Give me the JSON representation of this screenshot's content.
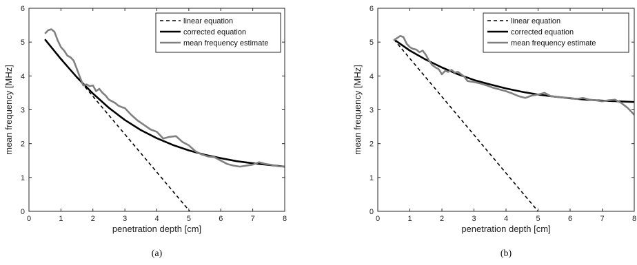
{
  "chart_data": [
    {
      "type": "line",
      "caption": "(a)",
      "xlabel": "penetration depth [cm]",
      "ylabel": "mean frequency [MHz]",
      "xlim": [
        0,
        8
      ],
      "ylim": [
        0,
        6
      ],
      "xticks": [
        0,
        1,
        2,
        3,
        4,
        5,
        6,
        7,
        8
      ],
      "yticks": [
        0,
        1,
        2,
        3,
        4,
        5,
        6
      ],
      "grid": false,
      "legend_position": "top-right",
      "series": [
        {
          "name": "linear equation",
          "style": "dashed",
          "color": "#000000",
          "x": [
            0.5,
            5.03
          ],
          "y": [
            5.08,
            0.0
          ]
        },
        {
          "name": "corrected equation",
          "style": "solid",
          "color": "#000000",
          "x": [
            0.5,
            1.0,
            1.5,
            2.0,
            2.5,
            3.0,
            3.5,
            4.0,
            4.5,
            5.0,
            5.5,
            6.0,
            6.5,
            7.0,
            7.5,
            8.0
          ],
          "y": [
            5.08,
            4.5,
            3.96,
            3.48,
            3.06,
            2.7,
            2.4,
            2.16,
            1.96,
            1.8,
            1.67,
            1.57,
            1.48,
            1.42,
            1.37,
            1.32
          ]
        },
        {
          "name": "mean frequency estimate",
          "style": "solid",
          "color": "#808080",
          "x": [
            0.5,
            0.6,
            0.7,
            0.8,
            0.9,
            1.0,
            1.1,
            1.2,
            1.3,
            1.4,
            1.5,
            1.6,
            1.7,
            1.8,
            1.9,
            2.0,
            2.1,
            2.2,
            2.3,
            2.4,
            2.5,
            2.6,
            2.7,
            2.8,
            2.9,
            3.0,
            3.2,
            3.4,
            3.6,
            3.8,
            4.0,
            4.2,
            4.4,
            4.6,
            4.8,
            5.0,
            5.2,
            5.4,
            5.6,
            5.8,
            6.0,
            6.2,
            6.4,
            6.6,
            6.8,
            7.0,
            7.2,
            7.4,
            7.6,
            7.8,
            8.0
          ],
          "y": [
            5.25,
            5.35,
            5.38,
            5.3,
            5.05,
            4.85,
            4.75,
            4.6,
            4.55,
            4.45,
            4.2,
            3.95,
            3.72,
            3.75,
            3.7,
            3.72,
            3.55,
            3.62,
            3.5,
            3.42,
            3.3,
            3.25,
            3.2,
            3.12,
            3.08,
            3.05,
            2.85,
            2.68,
            2.55,
            2.42,
            2.35,
            2.15,
            2.2,
            2.22,
            2.05,
            1.95,
            1.78,
            1.68,
            1.62,
            1.6,
            1.5,
            1.4,
            1.35,
            1.32,
            1.35,
            1.38,
            1.45,
            1.4,
            1.37,
            1.33,
            1.32
          ]
        }
      ]
    },
    {
      "type": "line",
      "caption": "(b)",
      "xlabel": "penetration depth [cm]",
      "ylabel": "mean frequency [MHz]",
      "xlim": [
        0,
        8
      ],
      "ylim": [
        0,
        6
      ],
      "xticks": [
        0,
        1,
        2,
        3,
        4,
        5,
        6,
        7,
        8
      ],
      "yticks": [
        0,
        1,
        2,
        3,
        4,
        5,
        6
      ],
      "grid": false,
      "legend_position": "top-right",
      "series": [
        {
          "name": "linear equation",
          "style": "dashed",
          "color": "#000000",
          "x": [
            0.5,
            5.0
          ],
          "y": [
            5.08,
            0.0
          ]
        },
        {
          "name": "corrected equation",
          "style": "solid",
          "color": "#000000",
          "x": [
            0.5,
            1.0,
            1.5,
            2.0,
            2.5,
            3.0,
            3.5,
            4.0,
            4.5,
            5.0,
            5.5,
            6.0,
            6.5,
            7.0,
            7.5,
            8.0
          ],
          "y": [
            5.08,
            4.75,
            4.48,
            4.25,
            4.05,
            3.88,
            3.75,
            3.63,
            3.53,
            3.45,
            3.39,
            3.34,
            3.3,
            3.27,
            3.25,
            3.23
          ]
        },
        {
          "name": "mean frequency estimate",
          "style": "solid",
          "color": "#808080",
          "x": [
            0.5,
            0.6,
            0.7,
            0.8,
            0.9,
            1.0,
            1.1,
            1.2,
            1.3,
            1.4,
            1.5,
            1.6,
            1.7,
            1.8,
            1.9,
            2.0,
            2.1,
            2.2,
            2.3,
            2.4,
            2.5,
            2.6,
            2.7,
            2.8,
            3.0,
            3.2,
            3.4,
            3.6,
            3.8,
            4.0,
            4.2,
            4.4,
            4.6,
            4.8,
            5.0,
            5.2,
            5.4,
            5.6,
            5.8,
            6.0,
            6.2,
            6.4,
            6.6,
            6.8,
            7.0,
            7.2,
            7.4,
            7.6,
            7.8,
            8.0
          ],
          "y": [
            5.05,
            5.12,
            5.18,
            5.15,
            4.95,
            4.85,
            4.8,
            4.78,
            4.7,
            4.75,
            4.62,
            4.45,
            4.32,
            4.25,
            4.2,
            4.05,
            4.15,
            4.12,
            4.18,
            4.1,
            4.12,
            4.05,
            3.98,
            3.85,
            3.82,
            3.78,
            3.72,
            3.65,
            3.6,
            3.55,
            3.48,
            3.4,
            3.35,
            3.42,
            3.45,
            3.5,
            3.4,
            3.38,
            3.36,
            3.35,
            3.32,
            3.35,
            3.3,
            3.28,
            3.25,
            3.28,
            3.3,
            3.2,
            3.05,
            2.85
          ]
        }
      ]
    }
  ]
}
